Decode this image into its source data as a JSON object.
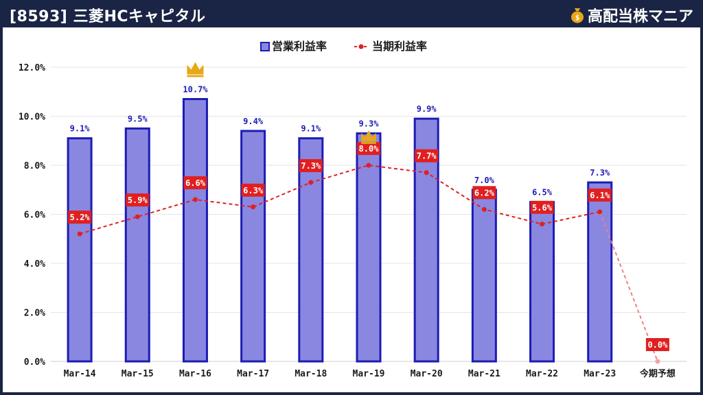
{
  "header": {
    "title": "[8593] 三菱HCキャピタル",
    "brand": "高配当株マニア",
    "bag_icon": "money-bag-icon"
  },
  "chart_data": {
    "type": "bar",
    "categories": [
      "Mar-14",
      "Mar-15",
      "Mar-16",
      "Mar-17",
      "Mar-18",
      "Mar-19",
      "Mar-20",
      "Mar-21",
      "Mar-22",
      "Mar-23",
      "今期予想"
    ],
    "series": [
      {
        "name": "営業利益率",
        "type": "bar",
        "values": [
          9.1,
          9.5,
          10.7,
          9.4,
          9.1,
          9.3,
          9.9,
          7.0,
          6.5,
          7.3,
          null
        ],
        "labels": [
          "9.1%",
          "9.5%",
          "10.7%",
          "9.4%",
          "9.1%",
          "9.3%",
          "9.9%",
          "7.0%",
          "6.5%",
          "7.3%",
          ""
        ],
        "color": "#8a87e0",
        "border": "#1c1cb4"
      },
      {
        "name": "当期利益率",
        "type": "line",
        "values": [
          5.2,
          5.9,
          6.6,
          6.3,
          7.3,
          8.0,
          7.7,
          6.2,
          5.6,
          6.1,
          0.0
        ],
        "labels": [
          "5.2%",
          "5.9%",
          "6.6%",
          "6.3%",
          "7.3%",
          "8.0%",
          "7.7%",
          "6.2%",
          "5.6%",
          "6.1%",
          "0.0%"
        ],
        "color": "#e02020"
      }
    ],
    "ylim": [
      0,
      12
    ],
    "yticks": [
      "0.0%",
      "2.0%",
      "4.0%",
      "6.0%",
      "8.0%",
      "10.0%",
      "12.0%"
    ],
    "grid": true,
    "legend": "top-center",
    "crowns": [
      {
        "series": "営業利益率",
        "index": 2
      },
      {
        "series": "当期利益率",
        "index": 5
      }
    ],
    "crown_icon": "crown-icon",
    "crown_color": "#e6a817"
  }
}
